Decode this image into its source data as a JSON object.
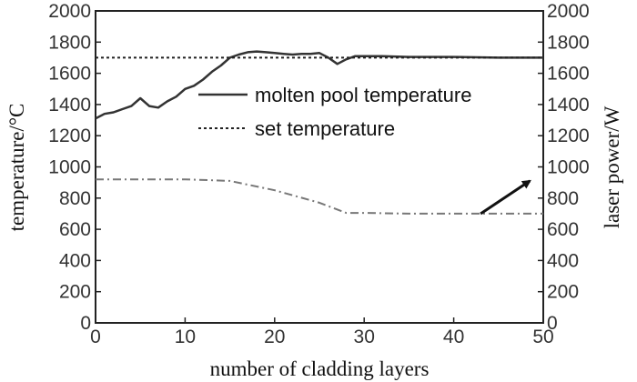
{
  "chart_data": {
    "type": "line",
    "xlabel": "number of cladding layers",
    "ylabel_left": "temperature/°C",
    "ylabel_right": "laser power/W",
    "xlim": [
      0,
      50
    ],
    "ylim_left": [
      0,
      2000
    ],
    "ylim_right": [
      0,
      2000
    ],
    "x_ticks": [
      0,
      10,
      20,
      30,
      40,
      50
    ],
    "y_ticks_left": [
      0,
      200,
      400,
      600,
      800,
      1000,
      1200,
      1400,
      1600,
      1800,
      2000
    ],
    "y_ticks_right": [
      0,
      200,
      400,
      600,
      800,
      1000,
      1200,
      1400,
      1600,
      1800,
      2000
    ],
    "grid": false,
    "legend_position": "upper-center",
    "series": [
      {
        "name": "molten pool temperature",
        "axis": "left",
        "style": "solid",
        "color": "#333333",
        "x": [
          0,
          1,
          2,
          3,
          4,
          5,
          6,
          7,
          8,
          9,
          10,
          11,
          12,
          13,
          14,
          15,
          16,
          17,
          18,
          19,
          20,
          21,
          22,
          23,
          24,
          25,
          26,
          27,
          28,
          29,
          30,
          32,
          35,
          40,
          45,
          50
        ],
        "y": [
          1310,
          1340,
          1350,
          1370,
          1390,
          1440,
          1390,
          1380,
          1420,
          1450,
          1500,
          1520,
          1560,
          1610,
          1650,
          1700,
          1720,
          1735,
          1740,
          1735,
          1730,
          1725,
          1720,
          1725,
          1725,
          1730,
          1700,
          1660,
          1690,
          1710,
          1710,
          1710,
          1705,
          1705,
          1700,
          1700
        ]
      },
      {
        "name": "set temperature",
        "axis": "left",
        "style": "dotted",
        "color": "#222222",
        "x": [
          0,
          50
        ],
        "y": [
          1700,
          1700
        ]
      },
      {
        "name": "",
        "axis": "right",
        "style": "dash-dot",
        "color": "#777777",
        "x": [
          0,
          5,
          10,
          15,
          20,
          25,
          28,
          30,
          35,
          40,
          45,
          50
        ],
        "y": [
          920,
          920,
          920,
          910,
          850,
          770,
          705,
          705,
          700,
          700,
          700,
          700
        ]
      }
    ],
    "annotations": [
      {
        "type": "arrow",
        "from": [
          43,
          700
        ],
        "to": [
          48.5,
          910
        ],
        "points_to": "right-axis"
      }
    ]
  }
}
